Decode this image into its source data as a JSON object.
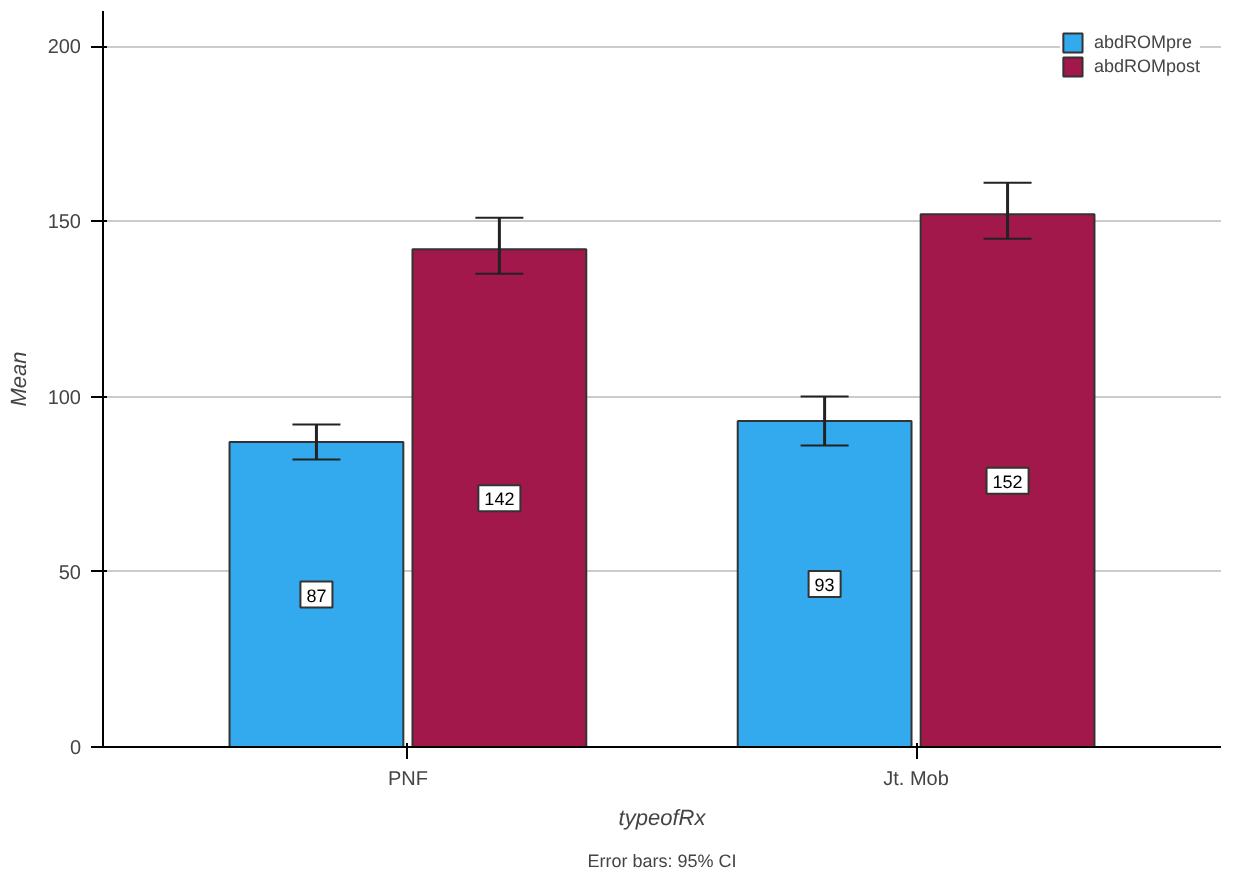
{
  "chart_data": {
    "type": "bar",
    "xlabel": "typeofRx",
    "ylabel": "Mean",
    "categories": [
      "PNF",
      "Jt. Mob"
    ],
    "series": [
      {
        "name": "abdROMpre",
        "color": "#33aaee",
        "values": [
          87,
          93
        ],
        "errors": [
          [
            82,
            92
          ],
          [
            86,
            100
          ]
        ]
      },
      {
        "name": "abdROMpost",
        "color": "#a3184a",
        "values": [
          142,
          152
        ],
        "errors": [
          [
            135,
            151
          ],
          [
            145,
            161
          ]
        ]
      }
    ],
    "ylim": [
      0,
      210
    ],
    "yticks": [
      0,
      50,
      100,
      150,
      200
    ],
    "grid": "y",
    "legend": "top right",
    "data_labels": true,
    "annotations": [
      "Error bars: 95% CI"
    ]
  }
}
